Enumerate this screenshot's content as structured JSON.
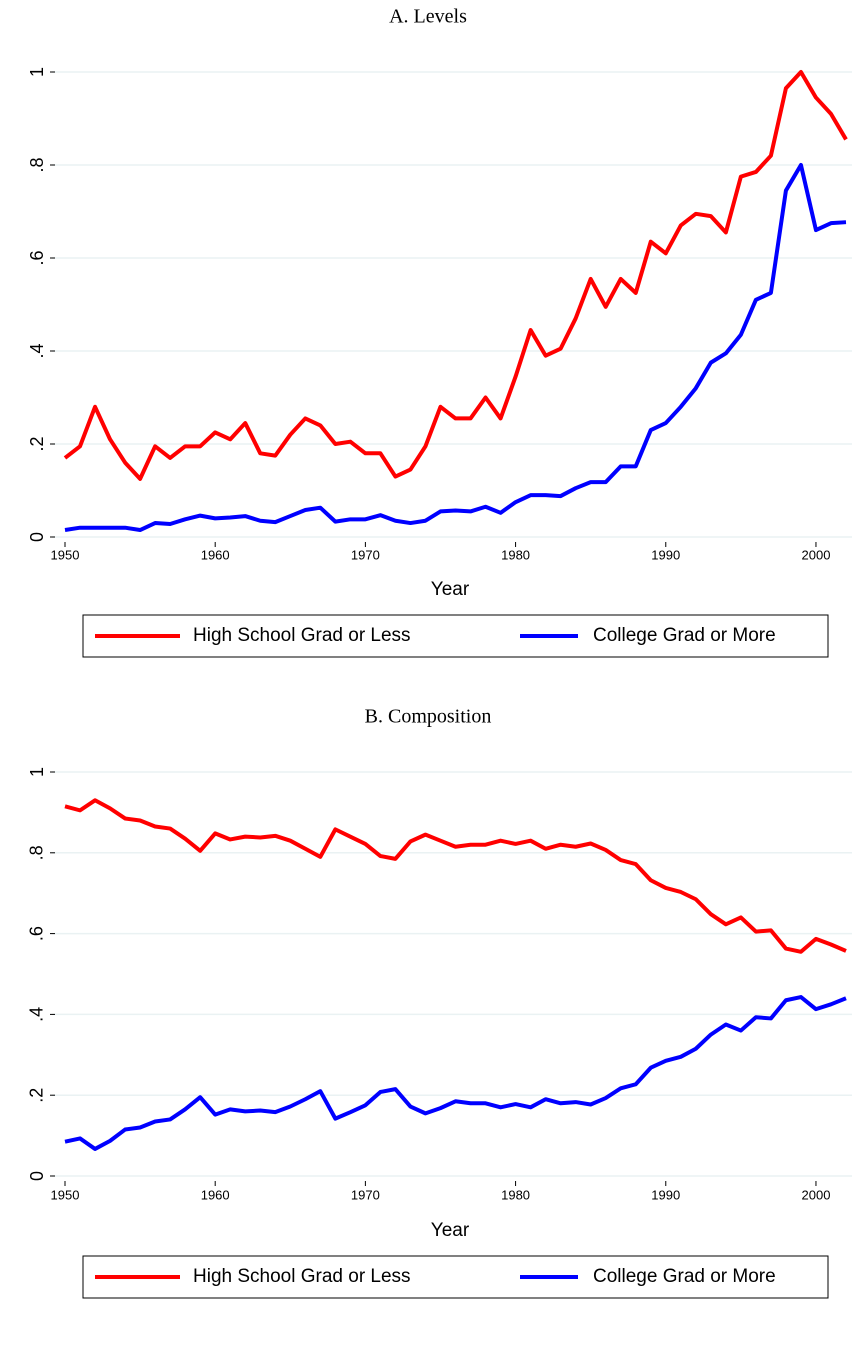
{
  "chart_data": [
    {
      "type": "line",
      "title": "A. Levels",
      "x_label": "Year",
      "x": [
        1950,
        1951,
        1952,
        1953,
        1954,
        1955,
        1956,
        1957,
        1958,
        1959,
        1960,
        1961,
        1962,
        1963,
        1964,
        1965,
        1966,
        1967,
        1968,
        1969,
        1970,
        1971,
        1972,
        1973,
        1974,
        1975,
        1976,
        1977,
        1978,
        1979,
        1980,
        1981,
        1982,
        1983,
        1984,
        1985,
        1986,
        1987,
        1988,
        1989,
        1990,
        1991,
        1992,
        1993,
        1994,
        1995,
        1996,
        1997,
        1998,
        1999,
        2000,
        2001,
        2002
      ],
      "series": [
        {
          "name": "High School Grad or Less",
          "color": "#ff0000",
          "values": [
            0.17,
            0.195,
            0.28,
            0.21,
            0.16,
            0.125,
            0.195,
            0.17,
            0.195,
            0.195,
            0.225,
            0.21,
            0.245,
            0.18,
            0.175,
            0.22,
            0.255,
            0.24,
            0.2,
            0.205,
            0.18,
            0.18,
            0.13,
            0.145,
            0.195,
            0.28,
            0.255,
            0.255,
            0.3,
            0.255,
            0.345,
            0.445,
            0.39,
            0.405,
            0.47,
            0.555,
            0.495,
            0.555,
            0.525,
            0.635,
            0.61,
            0.67,
            0.695,
            0.69,
            0.655,
            0.775,
            0.785,
            0.82,
            0.965,
            1.0,
            0.945,
            0.91,
            0.855
          ]
        },
        {
          "name": "College Grad or More",
          "color": "#0000ff",
          "values": [
            0.015,
            0.02,
            0.02,
            0.02,
            0.02,
            0.015,
            0.03,
            0.028,
            0.038,
            0.046,
            0.04,
            0.042,
            0.045,
            0.035,
            0.032,
            0.045,
            0.058,
            0.063,
            0.033,
            0.038,
            0.038,
            0.047,
            0.035,
            0.03,
            0.035,
            0.055,
            0.057,
            0.055,
            0.065,
            0.052,
            0.075,
            0.09,
            0.09,
            0.088,
            0.105,
            0.118,
            0.118,
            0.152,
            0.152,
            0.23,
            0.245,
            0.28,
            0.32,
            0.375,
            0.395,
            0.435,
            0.51,
            0.525,
            0.745,
            0.8,
            0.66,
            0.675,
            0.677
          ]
        }
      ],
      "xlim": [
        1950,
        2002
      ],
      "xticks": [
        1950,
        1960,
        1970,
        1980,
        1990,
        2000
      ],
      "ylim": [
        0,
        1
      ],
      "yticks": [
        0,
        {
          "value": 0.2,
          "label": ".2"
        },
        {
          "value": 0.4,
          "label": ".4"
        },
        {
          "value": 0.6,
          "label": ".6"
        },
        {
          "value": 0.8,
          "label": ".8"
        },
        1
      ],
      "grid": true
    },
    {
      "type": "line",
      "title": "B. Composition",
      "x_label": "Year",
      "x": [
        1950,
        1951,
        1952,
        1953,
        1954,
        1955,
        1956,
        1957,
        1958,
        1959,
        1960,
        1961,
        1962,
        1963,
        1964,
        1965,
        1966,
        1967,
        1968,
        1969,
        1970,
        1971,
        1972,
        1973,
        1974,
        1975,
        1976,
        1977,
        1978,
        1979,
        1980,
        1981,
        1982,
        1983,
        1984,
        1985,
        1986,
        1987,
        1988,
        1989,
        1990,
        1991,
        1992,
        1993,
        1994,
        1995,
        1996,
        1997,
        1998,
        1999,
        2000,
        2001,
        2002
      ],
      "series": [
        {
          "name": "High School Grad or Less",
          "color": "#ff0000",
          "values": [
            0.915,
            0.905,
            0.93,
            0.91,
            0.885,
            0.88,
            0.865,
            0.86,
            0.835,
            0.805,
            0.848,
            0.833,
            0.84,
            0.838,
            0.842,
            0.83,
            0.81,
            0.79,
            0.858,
            0.84,
            0.822,
            0.792,
            0.785,
            0.828,
            0.845,
            0.83,
            0.815,
            0.82,
            0.82,
            0.83,
            0.822,
            0.83,
            0.81,
            0.82,
            0.815,
            0.823,
            0.807,
            0.782,
            0.772,
            0.732,
            0.713,
            0.703,
            0.685,
            0.648,
            0.623,
            0.64,
            0.605,
            0.608,
            0.563,
            0.555,
            0.587,
            0.573,
            0.557
          ]
        },
        {
          "name": "College Grad or More",
          "color": "#0000ff",
          "values": [
            0.085,
            0.093,
            0.067,
            0.087,
            0.115,
            0.12,
            0.135,
            0.14,
            0.165,
            0.195,
            0.152,
            0.165,
            0.16,
            0.162,
            0.158,
            0.172,
            0.19,
            0.21,
            0.142,
            0.158,
            0.175,
            0.208,
            0.215,
            0.172,
            0.155,
            0.168,
            0.185,
            0.18,
            0.18,
            0.17,
            0.178,
            0.17,
            0.19,
            0.18,
            0.183,
            0.177,
            0.193,
            0.217,
            0.227,
            0.268,
            0.285,
            0.295,
            0.315,
            0.35,
            0.375,
            0.36,
            0.393,
            0.39,
            0.435,
            0.443,
            0.413,
            0.425,
            0.44
          ]
        }
      ],
      "xlim": [
        1950,
        2002
      ],
      "xticks": [
        1950,
        1960,
        1970,
        1980,
        1990,
        2000
      ],
      "ylim": [
        0,
        1
      ],
      "yticks": [
        0,
        {
          "value": 0.2,
          "label": ".2"
        },
        {
          "value": 0.4,
          "label": ".4"
        },
        {
          "value": 0.6,
          "label": ".6"
        },
        {
          "value": 0.8,
          "label": ".8"
        },
        1
      ],
      "grid": true
    }
  ]
}
